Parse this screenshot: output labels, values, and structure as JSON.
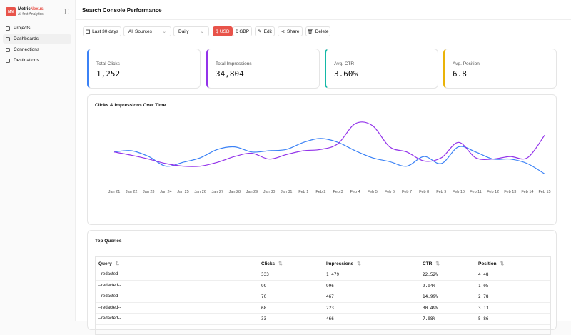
{
  "sidebar": {
    "logo": "MN",
    "brand_a": "Metric",
    "brand_b": "Nexus",
    "tagline": "AI-first Analytics",
    "nav": [
      "Projects",
      "Dashboards",
      "Connections",
      "Destinations"
    ]
  },
  "header": {
    "title": "Search Console Performance"
  },
  "toolbar": {
    "range": "Last 30 days",
    "source": "All Sources",
    "interval": "Daily",
    "usd": "$ USD",
    "gbp": "£ GBP",
    "edit": "Edit",
    "share": "Share",
    "delete": "Delete"
  },
  "kpis": [
    {
      "label": "Total Clicks",
      "value": "1,252",
      "color": "#3b82f6"
    },
    {
      "label": "Total Impressions",
      "value": "34,804",
      "color": "#9333ea"
    },
    {
      "label": "Avg. CTR",
      "value": "3.60%",
      "color": "#14b8a6"
    },
    {
      "label": "Avg. Position",
      "value": "6.8",
      "color": "#eab308"
    }
  ],
  "chart_data": {
    "type": "line",
    "title": "Clicks & Impressions Over Time",
    "categories": [
      "Jan 21",
      "Jan 22",
      "Jan 23",
      "Jan 24",
      "Jan 25",
      "Jan 26",
      "Jan 27",
      "Jan 28",
      "Jan 29",
      "Jan 30",
      "Jan 31",
      "Feb 1",
      "Feb 2",
      "Feb 3",
      "Feb 4",
      "Feb 5",
      "Feb 6",
      "Feb 7",
      "Feb 8",
      "Feb 9",
      "Feb 10",
      "Feb 11",
      "Feb 12",
      "Feb 13",
      "Feb 14",
      "Feb 15"
    ],
    "ylim": [
      0,
      100
    ],
    "series": [
      {
        "color": "#3b82f6",
        "values": [
          48,
          50,
          41,
          26,
          32,
          39,
          52,
          56,
          48,
          50,
          52,
          63,
          69,
          63,
          50,
          39,
          33,
          26,
          41,
          30,
          56,
          48,
          37,
          37,
          30,
          14
        ]
      },
      {
        "color": "#9333ea",
        "values": [
          48,
          43,
          37,
          30,
          26,
          26,
          32,
          41,
          46,
          37,
          44,
          50,
          52,
          61,
          92,
          89,
          56,
          48,
          34,
          39,
          63,
          39,
          37,
          41,
          39,
          74
        ]
      }
    ]
  },
  "table": {
    "title": "Top Queries",
    "columns": [
      "Query",
      "Clicks",
      "Impressions",
      "CTR",
      "Position"
    ],
    "rows": [
      [
        "--redacted--",
        "333",
        "1,479",
        "22.52%",
        "4.48"
      ],
      [
        "--redacted--",
        "99",
        "996",
        "9.94%",
        "1.05"
      ],
      [
        "--redacted--",
        "70",
        "467",
        "14.99%",
        "2.78"
      ],
      [
        "--redacted--",
        "68",
        "223",
        "30.49%",
        "3.13"
      ],
      [
        "--redacted--",
        "33",
        "466",
        "7.08%",
        "5.86"
      ]
    ]
  }
}
